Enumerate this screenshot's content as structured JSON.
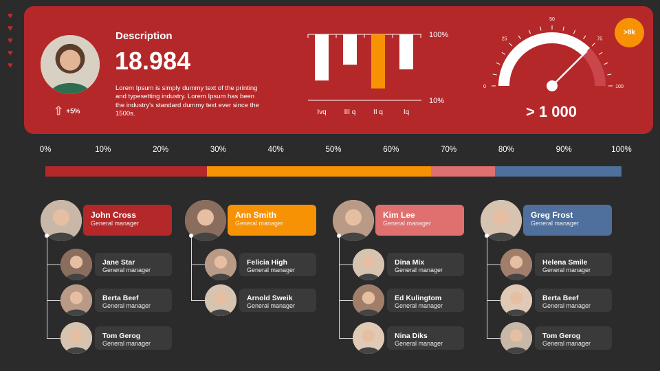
{
  "hero": {
    "title": "Description",
    "value": "18.984",
    "text": "Lorem Ipsum is simply dummy text of the printing and typesetting industry. Lorem Ipsum has been the industry's standard dummy text ever since the 1500s.",
    "trend": "+5%",
    "badge": ">8k",
    "gauge_value_label": "> 1 000"
  },
  "chart_data": [
    {
      "type": "bar",
      "orientation": "hanging",
      "categories": [
        "Ivq",
        "III q",
        "II q",
        "Iq"
      ],
      "values": [
        70,
        46,
        82,
        53
      ],
      "highlight": "II q",
      "axis_labels": [
        "100%",
        "10%"
      ],
      "colors": {
        "default": "#ffffff",
        "highlight": "#f79205"
      }
    },
    {
      "type": "gauge",
      "value": 75,
      "ticks": [
        "0",
        "25",
        "50",
        "75",
        "100"
      ],
      "min": 0,
      "max": 100
    }
  ],
  "progress": {
    "ticks": [
      "0%",
      "10%",
      "20%",
      "30%",
      "40%",
      "50%",
      "60%",
      "70%",
      "80%",
      "90%",
      "100%"
    ],
    "segments": [
      {
        "value": 28,
        "color": "#b5282a"
      },
      {
        "value": 39,
        "color": "#f79205"
      },
      {
        "value": 11,
        "color": "#e07070"
      },
      {
        "value": 22,
        "color": "#4f6f9c"
      }
    ]
  },
  "teams": [
    {
      "leader": {
        "name": "John Cross",
        "role": "General manager"
      },
      "color": "#b5282a",
      "members": [
        {
          "name": "Jane Star",
          "role": "General manager"
        },
        {
          "name": "Berta Beef",
          "role": "General manager"
        },
        {
          "name": "Tom Gerog",
          "role": "General manager"
        }
      ]
    },
    {
      "leader": {
        "name": "Ann Smith",
        "role": "General manager"
      },
      "color": "#f79205",
      "members": [
        {
          "name": "Felicia High",
          "role": "General manager"
        },
        {
          "name": "Arnold Sweik",
          "role": "General manager"
        }
      ]
    },
    {
      "leader": {
        "name": "Kim Lee",
        "role": "General manager"
      },
      "color": "#e07070",
      "members": [
        {
          "name": "Dina Mix",
          "role": "General manager"
        },
        {
          "name": "Ed Kulingtom",
          "role": "General manager"
        },
        {
          "name": "Nina Diks",
          "role": "General manager"
        }
      ]
    },
    {
      "leader": {
        "name": "Greg Frost",
        "role": "General manager"
      },
      "color": "#4f6f9c",
      "members": [
        {
          "name": "Helena Smile",
          "role": "General manager"
        },
        {
          "name": "Berta Beef",
          "role": "General manager"
        },
        {
          "name": "Tom Gerog",
          "role": "General manager"
        }
      ]
    }
  ]
}
